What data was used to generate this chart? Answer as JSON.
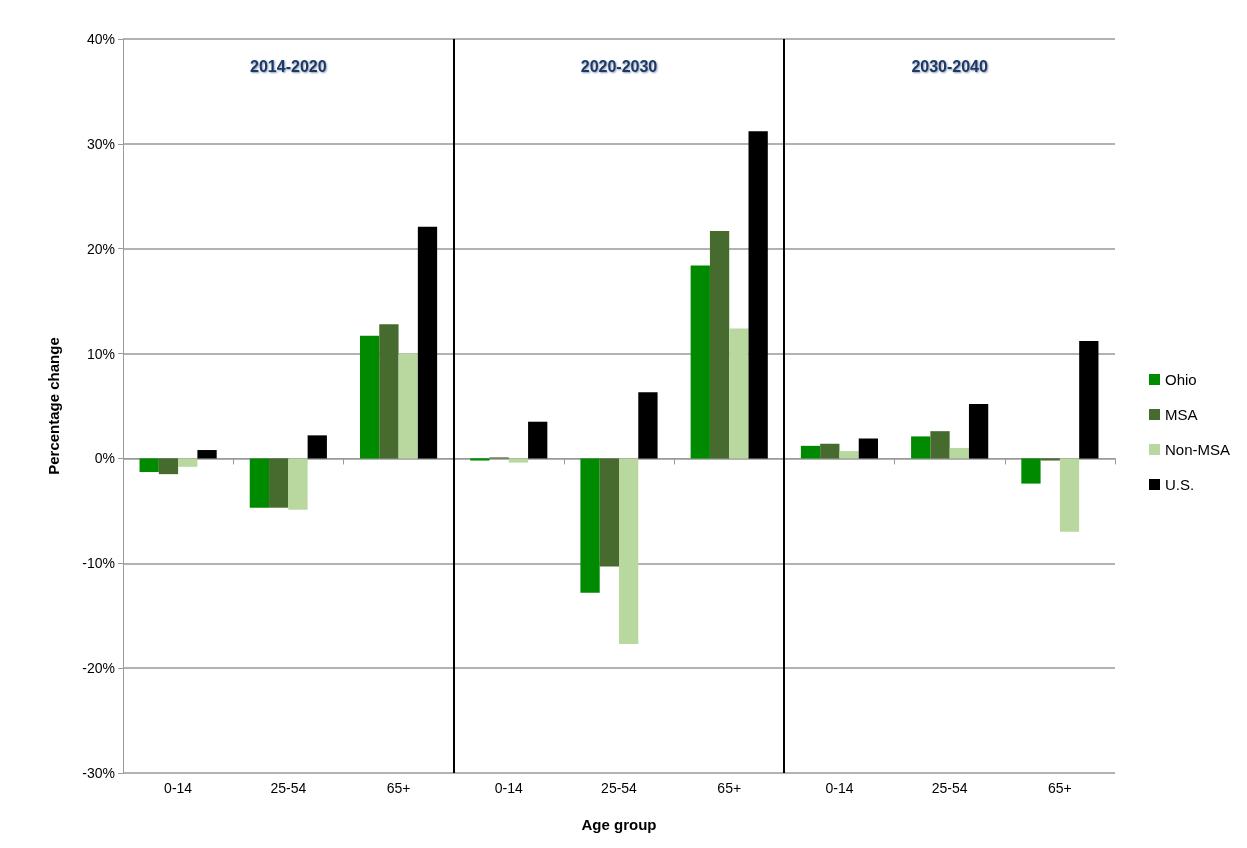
{
  "chart_data": {
    "type": "bar",
    "xlabel": "Age group",
    "ylabel": "Percentage change",
    "categories": [
      "0-14",
      "25-54",
      "65+",
      "0-14",
      "25-54",
      "65+",
      "0-14",
      "25-54",
      "65+"
    ],
    "series": [
      {
        "name": "Ohio",
        "color": "#008a00",
        "values": [
          -1.3,
          -4.7,
          11.7,
          -0.2,
          -12.8,
          18.4,
          1.2,
          2.1,
          -2.4
        ]
      },
      {
        "name": "MSA",
        "color": "#476a2e",
        "values": [
          -1.5,
          -4.7,
          12.8,
          0.1,
          -10.3,
          21.7,
          1.4,
          2.6,
          -0.2
        ]
      },
      {
        "name": "Non-MSA",
        "color": "#b8d8a0",
        "values": [
          -0.8,
          -4.9,
          10.0,
          -0.4,
          -17.7,
          12.4,
          0.7,
          1.0,
          -7.0
        ]
      },
      {
        "name": "U.S.",
        "color": "#000000",
        "values": [
          0.8,
          2.2,
          22.1,
          3.5,
          6.3,
          31.2,
          1.9,
          5.2,
          11.2
        ]
      }
    ],
    "annotations": [
      "2014-2020",
      "2020-2030",
      "2030-2040"
    ],
    "ylim": [
      -30,
      40
    ],
    "yticks": [
      {
        "value": -30,
        "label": "-30%"
      },
      {
        "value": -20,
        "label": "-20%"
      },
      {
        "value": -10,
        "label": "-10%"
      },
      {
        "value": 0,
        "label": "0%"
      },
      {
        "value": 10,
        "label": "10%"
      },
      {
        "value": 20,
        "label": "20%"
      },
      {
        "value": 30,
        "label": "30%"
      },
      {
        "value": 40,
        "label": "40%"
      }
    ],
    "grid": "y",
    "legend": "right"
  }
}
